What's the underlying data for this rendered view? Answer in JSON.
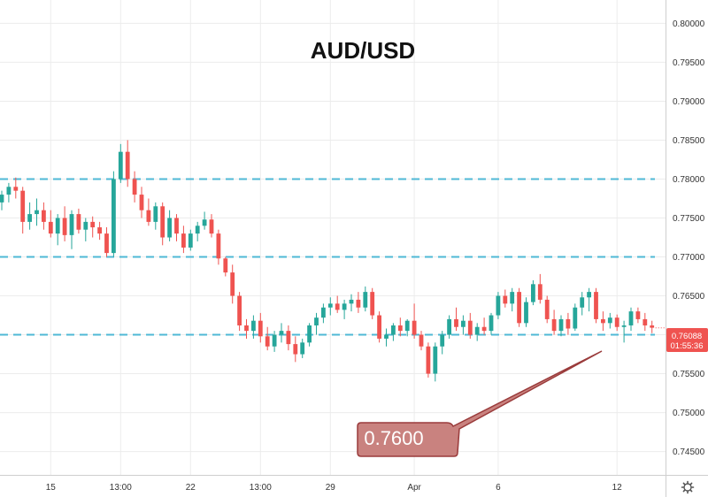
{
  "chart_data": {
    "type": "candlestick",
    "title": "AUD/USD",
    "ylim": [
      0.742,
      0.803
    ],
    "y_ticks": [
      "0.80000",
      "0.79500",
      "0.79000",
      "0.78500",
      "0.78000",
      "0.77500",
      "0.77000",
      "0.76500",
      "0.76000",
      "0.75500",
      "0.75000",
      "0.74500"
    ],
    "x_ticks": [
      {
        "label": "15",
        "index": 7
      },
      {
        "label": "13:00",
        "index": 17
      },
      {
        "label": "22",
        "index": 27
      },
      {
        "label": "13:00",
        "index": 37
      },
      {
        "label": "29",
        "index": 47
      },
      {
        "label": "Apr",
        "index": 59
      },
      {
        "label": "6",
        "index": 71
      },
      {
        "label": "12",
        "index": 88
      }
    ],
    "horizontal_levels": [
      0.78,
      0.77,
      0.76
    ],
    "level_color": "#4fb8d6",
    "up_color": "#26a69a",
    "down_color": "#ef5350",
    "candles": [
      [
        0.777,
        0.7785,
        0.776,
        0.778
      ],
      [
        0.778,
        0.7795,
        0.777,
        0.779
      ],
      [
        0.779,
        0.7802,
        0.7775,
        0.7785
      ],
      [
        0.7785,
        0.779,
        0.773,
        0.7745
      ],
      [
        0.7745,
        0.777,
        0.7735,
        0.7755
      ],
      [
        0.7755,
        0.7775,
        0.774,
        0.776
      ],
      [
        0.776,
        0.777,
        0.7735,
        0.7745
      ],
      [
        0.7745,
        0.776,
        0.7725,
        0.773
      ],
      [
        0.773,
        0.7755,
        0.7715,
        0.775
      ],
      [
        0.775,
        0.7765,
        0.772,
        0.7728
      ],
      [
        0.7728,
        0.776,
        0.771,
        0.7755
      ],
      [
        0.7755,
        0.7762,
        0.773,
        0.7735
      ],
      [
        0.7735,
        0.775,
        0.772,
        0.7745
      ],
      [
        0.7745,
        0.7752,
        0.7725,
        0.7738
      ],
      [
        0.7738,
        0.7745,
        0.7722,
        0.773
      ],
      [
        0.773,
        0.7738,
        0.77,
        0.7705
      ],
      [
        0.7705,
        0.781,
        0.77,
        0.78
      ],
      [
        0.78,
        0.7845,
        0.7795,
        0.7835
      ],
      [
        0.7835,
        0.785,
        0.779,
        0.78
      ],
      [
        0.78,
        0.781,
        0.777,
        0.778
      ],
      [
        0.778,
        0.779,
        0.775,
        0.776
      ],
      [
        0.776,
        0.7775,
        0.774,
        0.7745
      ],
      [
        0.7745,
        0.777,
        0.7735,
        0.7765
      ],
      [
        0.7765,
        0.777,
        0.7715,
        0.7725
      ],
      [
        0.7725,
        0.776,
        0.772,
        0.775
      ],
      [
        0.775,
        0.7755,
        0.772,
        0.773
      ],
      [
        0.773,
        0.774,
        0.7705,
        0.7712
      ],
      [
        0.7712,
        0.7735,
        0.7708,
        0.773
      ],
      [
        0.773,
        0.7745,
        0.772,
        0.774
      ],
      [
        0.774,
        0.7758,
        0.7735,
        0.7748
      ],
      [
        0.7748,
        0.7755,
        0.7725,
        0.773
      ],
      [
        0.773,
        0.7735,
        0.769,
        0.7698
      ],
      [
        0.7698,
        0.77,
        0.7675,
        0.768
      ],
      [
        0.768,
        0.769,
        0.764,
        0.765
      ],
      [
        0.765,
        0.7655,
        0.7605,
        0.7612
      ],
      [
        0.7612,
        0.762,
        0.7595,
        0.7605
      ],
      [
        0.7605,
        0.7625,
        0.7595,
        0.7618
      ],
      [
        0.7618,
        0.7628,
        0.759,
        0.7598
      ],
      [
        0.7598,
        0.761,
        0.758,
        0.7585
      ],
      [
        0.7585,
        0.7605,
        0.7578,
        0.76
      ],
      [
        0.76,
        0.7615,
        0.759,
        0.7605
      ],
      [
        0.7605,
        0.7612,
        0.758,
        0.7588
      ],
      [
        0.7588,
        0.7598,
        0.7565,
        0.7575
      ],
      [
        0.7575,
        0.7595,
        0.757,
        0.759
      ],
      [
        0.759,
        0.7615,
        0.7585,
        0.7612
      ],
      [
        0.7612,
        0.7628,
        0.76,
        0.7622
      ],
      [
        0.7622,
        0.764,
        0.7615,
        0.7635
      ],
      [
        0.7635,
        0.7648,
        0.7625,
        0.764
      ],
      [
        0.764,
        0.765,
        0.7628,
        0.7632
      ],
      [
        0.7632,
        0.7645,
        0.762,
        0.764
      ],
      [
        0.764,
        0.7652,
        0.763,
        0.7645
      ],
      [
        0.7645,
        0.7655,
        0.7628,
        0.7635
      ],
      [
        0.7635,
        0.7662,
        0.763,
        0.7655
      ],
      [
        0.7655,
        0.766,
        0.762,
        0.7625
      ],
      [
        0.7625,
        0.763,
        0.759,
        0.7595
      ],
      [
        0.7595,
        0.7608,
        0.7585,
        0.76
      ],
      [
        0.76,
        0.7615,
        0.7592,
        0.7612
      ],
      [
        0.7612,
        0.7622,
        0.7598,
        0.7605
      ],
      [
        0.7605,
        0.762,
        0.7598,
        0.7618
      ],
      [
        0.7618,
        0.764,
        0.7595,
        0.76
      ],
      [
        0.76,
        0.7605,
        0.758,
        0.7585
      ],
      [
        0.7585,
        0.759,
        0.7545,
        0.755
      ],
      [
        0.755,
        0.759,
        0.754,
        0.7585
      ],
      [
        0.7585,
        0.7605,
        0.7575,
        0.76
      ],
      [
        0.76,
        0.7625,
        0.7595,
        0.762
      ],
      [
        0.762,
        0.7635,
        0.7605,
        0.761
      ],
      [
        0.761,
        0.7625,
        0.76,
        0.7618
      ],
      [
        0.7618,
        0.7628,
        0.7595,
        0.76
      ],
      [
        0.76,
        0.7615,
        0.7592,
        0.761
      ],
      [
        0.761,
        0.7622,
        0.76,
        0.7605
      ],
      [
        0.7605,
        0.7628,
        0.76,
        0.7625
      ],
      [
        0.7625,
        0.7655,
        0.762,
        0.765
      ],
      [
        0.765,
        0.7658,
        0.7635,
        0.764
      ],
      [
        0.764,
        0.766,
        0.763,
        0.7655
      ],
      [
        0.7655,
        0.766,
        0.761,
        0.7615
      ],
      [
        0.7615,
        0.7648,
        0.761,
        0.7642
      ],
      [
        0.7642,
        0.767,
        0.7638,
        0.7665
      ],
      [
        0.7665,
        0.7678,
        0.764,
        0.7645
      ],
      [
        0.7645,
        0.765,
        0.7615,
        0.762
      ],
      [
        0.762,
        0.7632,
        0.76,
        0.7605
      ],
      [
        0.7605,
        0.7625,
        0.7598,
        0.762
      ],
      [
        0.762,
        0.7628,
        0.76,
        0.7608
      ],
      [
        0.7608,
        0.764,
        0.7605,
        0.7635
      ],
      [
        0.7635,
        0.7655,
        0.7625,
        0.7648
      ],
      [
        0.7648,
        0.766,
        0.763,
        0.7655
      ],
      [
        0.7655,
        0.766,
        0.7615,
        0.762
      ],
      [
        0.762,
        0.763,
        0.7605,
        0.7615
      ],
      [
        0.7615,
        0.7628,
        0.7608,
        0.7622
      ],
      [
        0.7622,
        0.7626,
        0.7605,
        0.761
      ],
      [
        0.761,
        0.7618,
        0.759,
        0.7612
      ],
      [
        0.7612,
        0.7635,
        0.7605,
        0.763
      ],
      [
        0.763,
        0.7635,
        0.7615,
        0.762
      ],
      [
        0.762,
        0.7628,
        0.7605,
        0.7612
      ],
      [
        0.7612,
        0.7618,
        0.7602,
        0.7609
      ]
    ],
    "price_label": {
      "value": "0.76088",
      "countdown": "01:55:36",
      "color": "#ef5350"
    },
    "annotation": {
      "text": "0.7600",
      "color": "#c9827f"
    }
  }
}
